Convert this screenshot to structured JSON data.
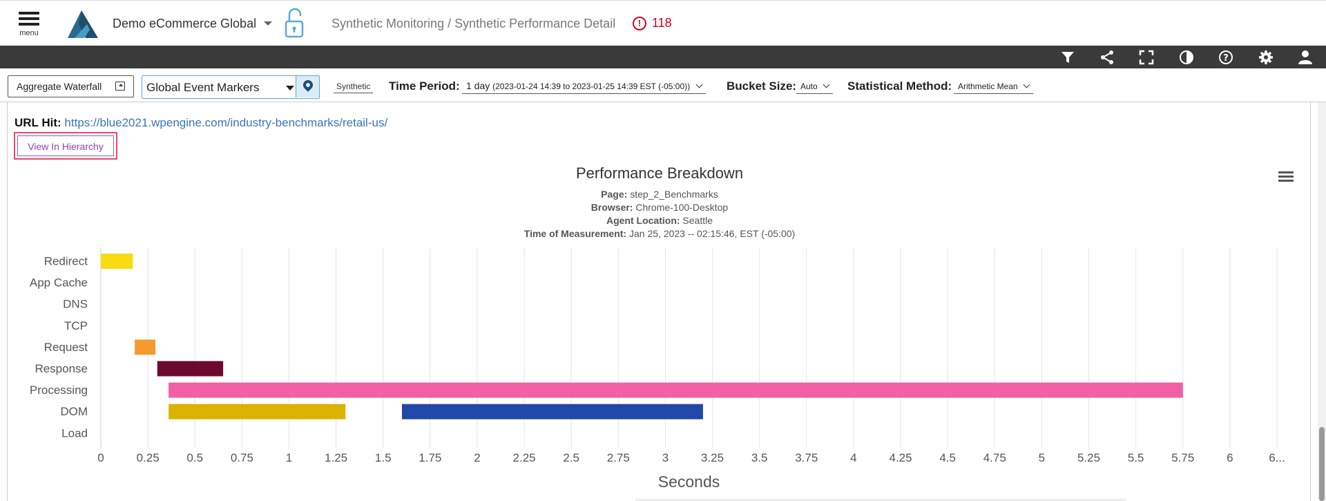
{
  "header": {
    "menu_label": "menu",
    "org_name": "Demo eCommerce Global",
    "breadcrumb": "Synthetic Monitoring / Synthetic Performance Detail",
    "alert_count": "118",
    "icons": [
      "filter-icon",
      "share-icon",
      "fullscreen-icon",
      "contrast-icon",
      "help-icon",
      "settings-icon",
      "user-icon"
    ]
  },
  "toolbar": {
    "aggregate_waterfall_label": "Aggregate Waterfall",
    "event_markers_value": "Global Event Markers",
    "synthetic_label": "Synthetic",
    "time_period_label": "Time Period:",
    "time_period_value": "1 day",
    "time_period_range": "(2023-01-24 14:39 to 2023-01-25 14:39 EST (-05:00))",
    "bucket_size_label": "Bucket Size:",
    "bucket_size_value": "Auto",
    "stat_method_label": "Statistical Method:",
    "stat_method_value": "Arithmetic Mean"
  },
  "detail": {
    "url_hit_label": "URL Hit:",
    "url_hit_value": "https://blue2021.wpengine.com/industry-benchmarks/retail-us/",
    "view_hierarchy_label": "View In Hierarchy"
  },
  "chart_data": {
    "type": "bar",
    "orientation": "horizontal-range",
    "title": "Performance Breakdown",
    "subtitle_lines": [
      {
        "label": "Page:",
        "value": "step_2_Benchmarks"
      },
      {
        "label": "Browser:",
        "value": "Chrome-100-Desktop"
      },
      {
        "label": "Agent Location:",
        "value": "Seattle"
      },
      {
        "label": "Time of Measurement:",
        "value": "Jan 25, 2023 -- 02:15:46, EST (-05:00)"
      }
    ],
    "xlabel": "Seconds",
    "ylabel": "",
    "xlim": [
      0,
      6.25
    ],
    "x_ticks": [
      "0",
      "0.25",
      "0.5",
      "0.75",
      "1",
      "1.25",
      "1.5",
      "1.75",
      "2",
      "2.25",
      "2.5",
      "2.75",
      "3",
      "3.25",
      "3.5",
      "3.75",
      "4",
      "4.25",
      "4.5",
      "4.75",
      "5",
      "5.25",
      "5.5",
      "5.75",
      "6",
      "6..."
    ],
    "categories": [
      "Redirect",
      "App Cache",
      "DNS",
      "TCP",
      "Request",
      "Response",
      "Processing",
      "DOM",
      "Load"
    ],
    "grid": true,
    "legend": "none",
    "segments": [
      {
        "category": "Redirect",
        "start": 0.0,
        "end": 0.17,
        "color": "#f7dc11"
      },
      {
        "category": "Request",
        "start": 0.18,
        "end": 0.29,
        "color": "#f59a2f"
      },
      {
        "category": "Response",
        "start": 0.3,
        "end": 0.65,
        "color": "#6b0a2e"
      },
      {
        "category": "Processing",
        "start": 0.36,
        "end": 5.75,
        "color": "#f25fa4"
      },
      {
        "category": "DOM",
        "start": 0.36,
        "end": 1.3,
        "color": "#dbb200"
      },
      {
        "category": "DOM",
        "start": 1.6,
        "end": 3.2,
        "color": "#1f48a8"
      }
    ]
  }
}
